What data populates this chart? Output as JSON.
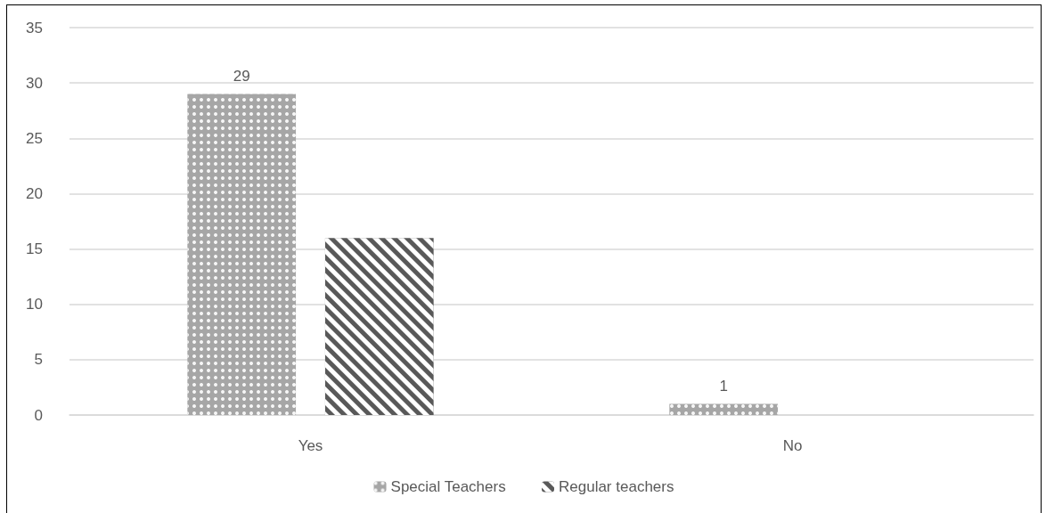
{
  "chart_data": {
    "type": "bar",
    "categories": [
      "Yes",
      "No"
    ],
    "series": [
      {
        "name": "Special Teachers",
        "color": "#a6a6a6",
        "values": [
          29,
          1
        ],
        "value_labels": [
          "29",
          "1"
        ]
      },
      {
        "name": "Regular teachers",
        "color": "#595959",
        "values": [
          16,
          0
        ]
      }
    ],
    "ylim": [
      0,
      35
    ],
    "yticks": [
      0,
      5,
      10,
      15,
      20,
      25,
      30,
      35
    ],
    "grid": "y",
    "legend": "bottom"
  }
}
